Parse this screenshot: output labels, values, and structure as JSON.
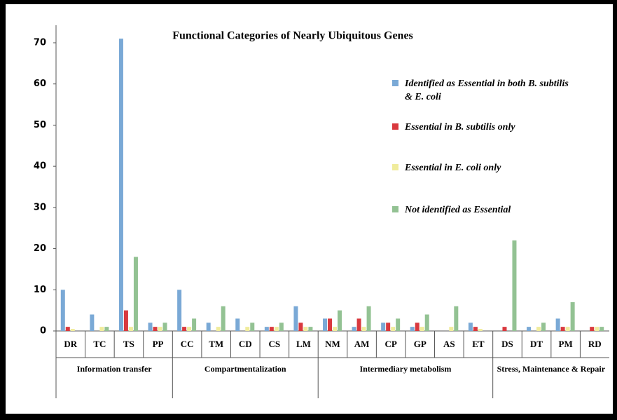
{
  "chart_data": {
    "type": "bar",
    "title": "Functional Categories of Nearly Ubiquitous Genes",
    "groups": [
      {
        "name": "Information transfer",
        "categories": [
          "DR",
          "TC",
          "TS",
          "PP"
        ]
      },
      {
        "name": "Compartmentalization",
        "categories": [
          "CC",
          "TM",
          "CD",
          "CS",
          "LM"
        ]
      },
      {
        "name": "Intermediary metabolism",
        "categories": [
          "NM",
          "AM",
          "CP",
          "GP",
          "AS",
          "ET"
        ]
      },
      {
        "name": "Stress, Maintenance & Repair",
        "categories": [
          "DS",
          "DT",
          "PM",
          "RD"
        ]
      }
    ],
    "series": [
      {
        "name": "Identified as Essential in both B. subtilis & E. coli",
        "color": "#7aa9d6",
        "values": [
          10,
          4,
          71,
          2,
          10,
          2,
          3,
          1,
          6,
          3,
          1,
          2,
          1,
          0,
          2,
          0,
          1,
          3,
          0
        ]
      },
      {
        "name": "Essential in B. subtilis only",
        "color": "#d9393e",
        "values": [
          1,
          0,
          5,
          1,
          1,
          0,
          0,
          1,
          2,
          3,
          3,
          2,
          2,
          0,
          1,
          1,
          0,
          1,
          1
        ]
      },
      {
        "name": "Essential in E. coli only",
        "color": "#f0ec9c",
        "values": [
          0.5,
          1,
          1,
          1,
          1,
          1,
          1,
          1,
          1,
          1,
          1,
          1,
          1,
          1,
          0.5,
          0,
          1,
          1,
          1
        ]
      },
      {
        "name": "Not identified as Essential",
        "color": "#93c293",
        "values": [
          0,
          1,
          18,
          2,
          3,
          6,
          2,
          2,
          1,
          5,
          6,
          3,
          4,
          6,
          0,
          22,
          2,
          7,
          1
        ]
      }
    ],
    "ylim": [
      0,
      70
    ],
    "yticks": [
      0,
      10,
      20,
      30,
      40,
      50,
      60,
      70
    ]
  }
}
